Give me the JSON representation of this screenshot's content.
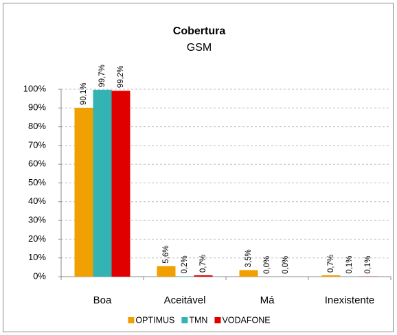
{
  "chart_data": {
    "type": "bar",
    "title": "Cobertura",
    "subtitle": "GSM",
    "categories": [
      "Boa",
      "Aceitável",
      "Má",
      "Inexistente"
    ],
    "series": [
      {
        "name": "OPTIMUS",
        "color": "#f0a000",
        "values": [
          90.1,
          5.6,
          3.5,
          0.7
        ],
        "value_labels": [
          "90,1%",
          "5,6%",
          "3,5%",
          "0,7%"
        ]
      },
      {
        "name": "TMN",
        "color": "#33b3b3",
        "values": [
          99.7,
          0.2,
          0.0,
          0.1
        ],
        "value_labels": [
          "99,7%",
          "0,2%",
          "0,0%",
          "0,1%"
        ]
      },
      {
        "name": "VODAFONE",
        "color": "#e00000",
        "values": [
          99.2,
          0.7,
          0.0,
          0.1
        ],
        "value_labels": [
          "99,2%",
          "0,7%",
          "0,0%",
          "0,1%"
        ]
      }
    ],
    "ylim": [
      0,
      100
    ],
    "yticks": [
      {
        "value": 0,
        "label": "0%"
      },
      {
        "value": 10,
        "label": "10%"
      },
      {
        "value": 20,
        "label": "20%"
      },
      {
        "value": 30,
        "label": "30%"
      },
      {
        "value": 40,
        "label": "40%"
      },
      {
        "value": 50,
        "label": "50%"
      },
      {
        "value": 60,
        "label": "60%"
      },
      {
        "value": 70,
        "label": "70%"
      },
      {
        "value": 80,
        "label": "80%"
      },
      {
        "value": 90,
        "label": "90%"
      },
      {
        "value": 100,
        "label": "100%"
      }
    ],
    "grid": true,
    "legend": "bottom"
  }
}
